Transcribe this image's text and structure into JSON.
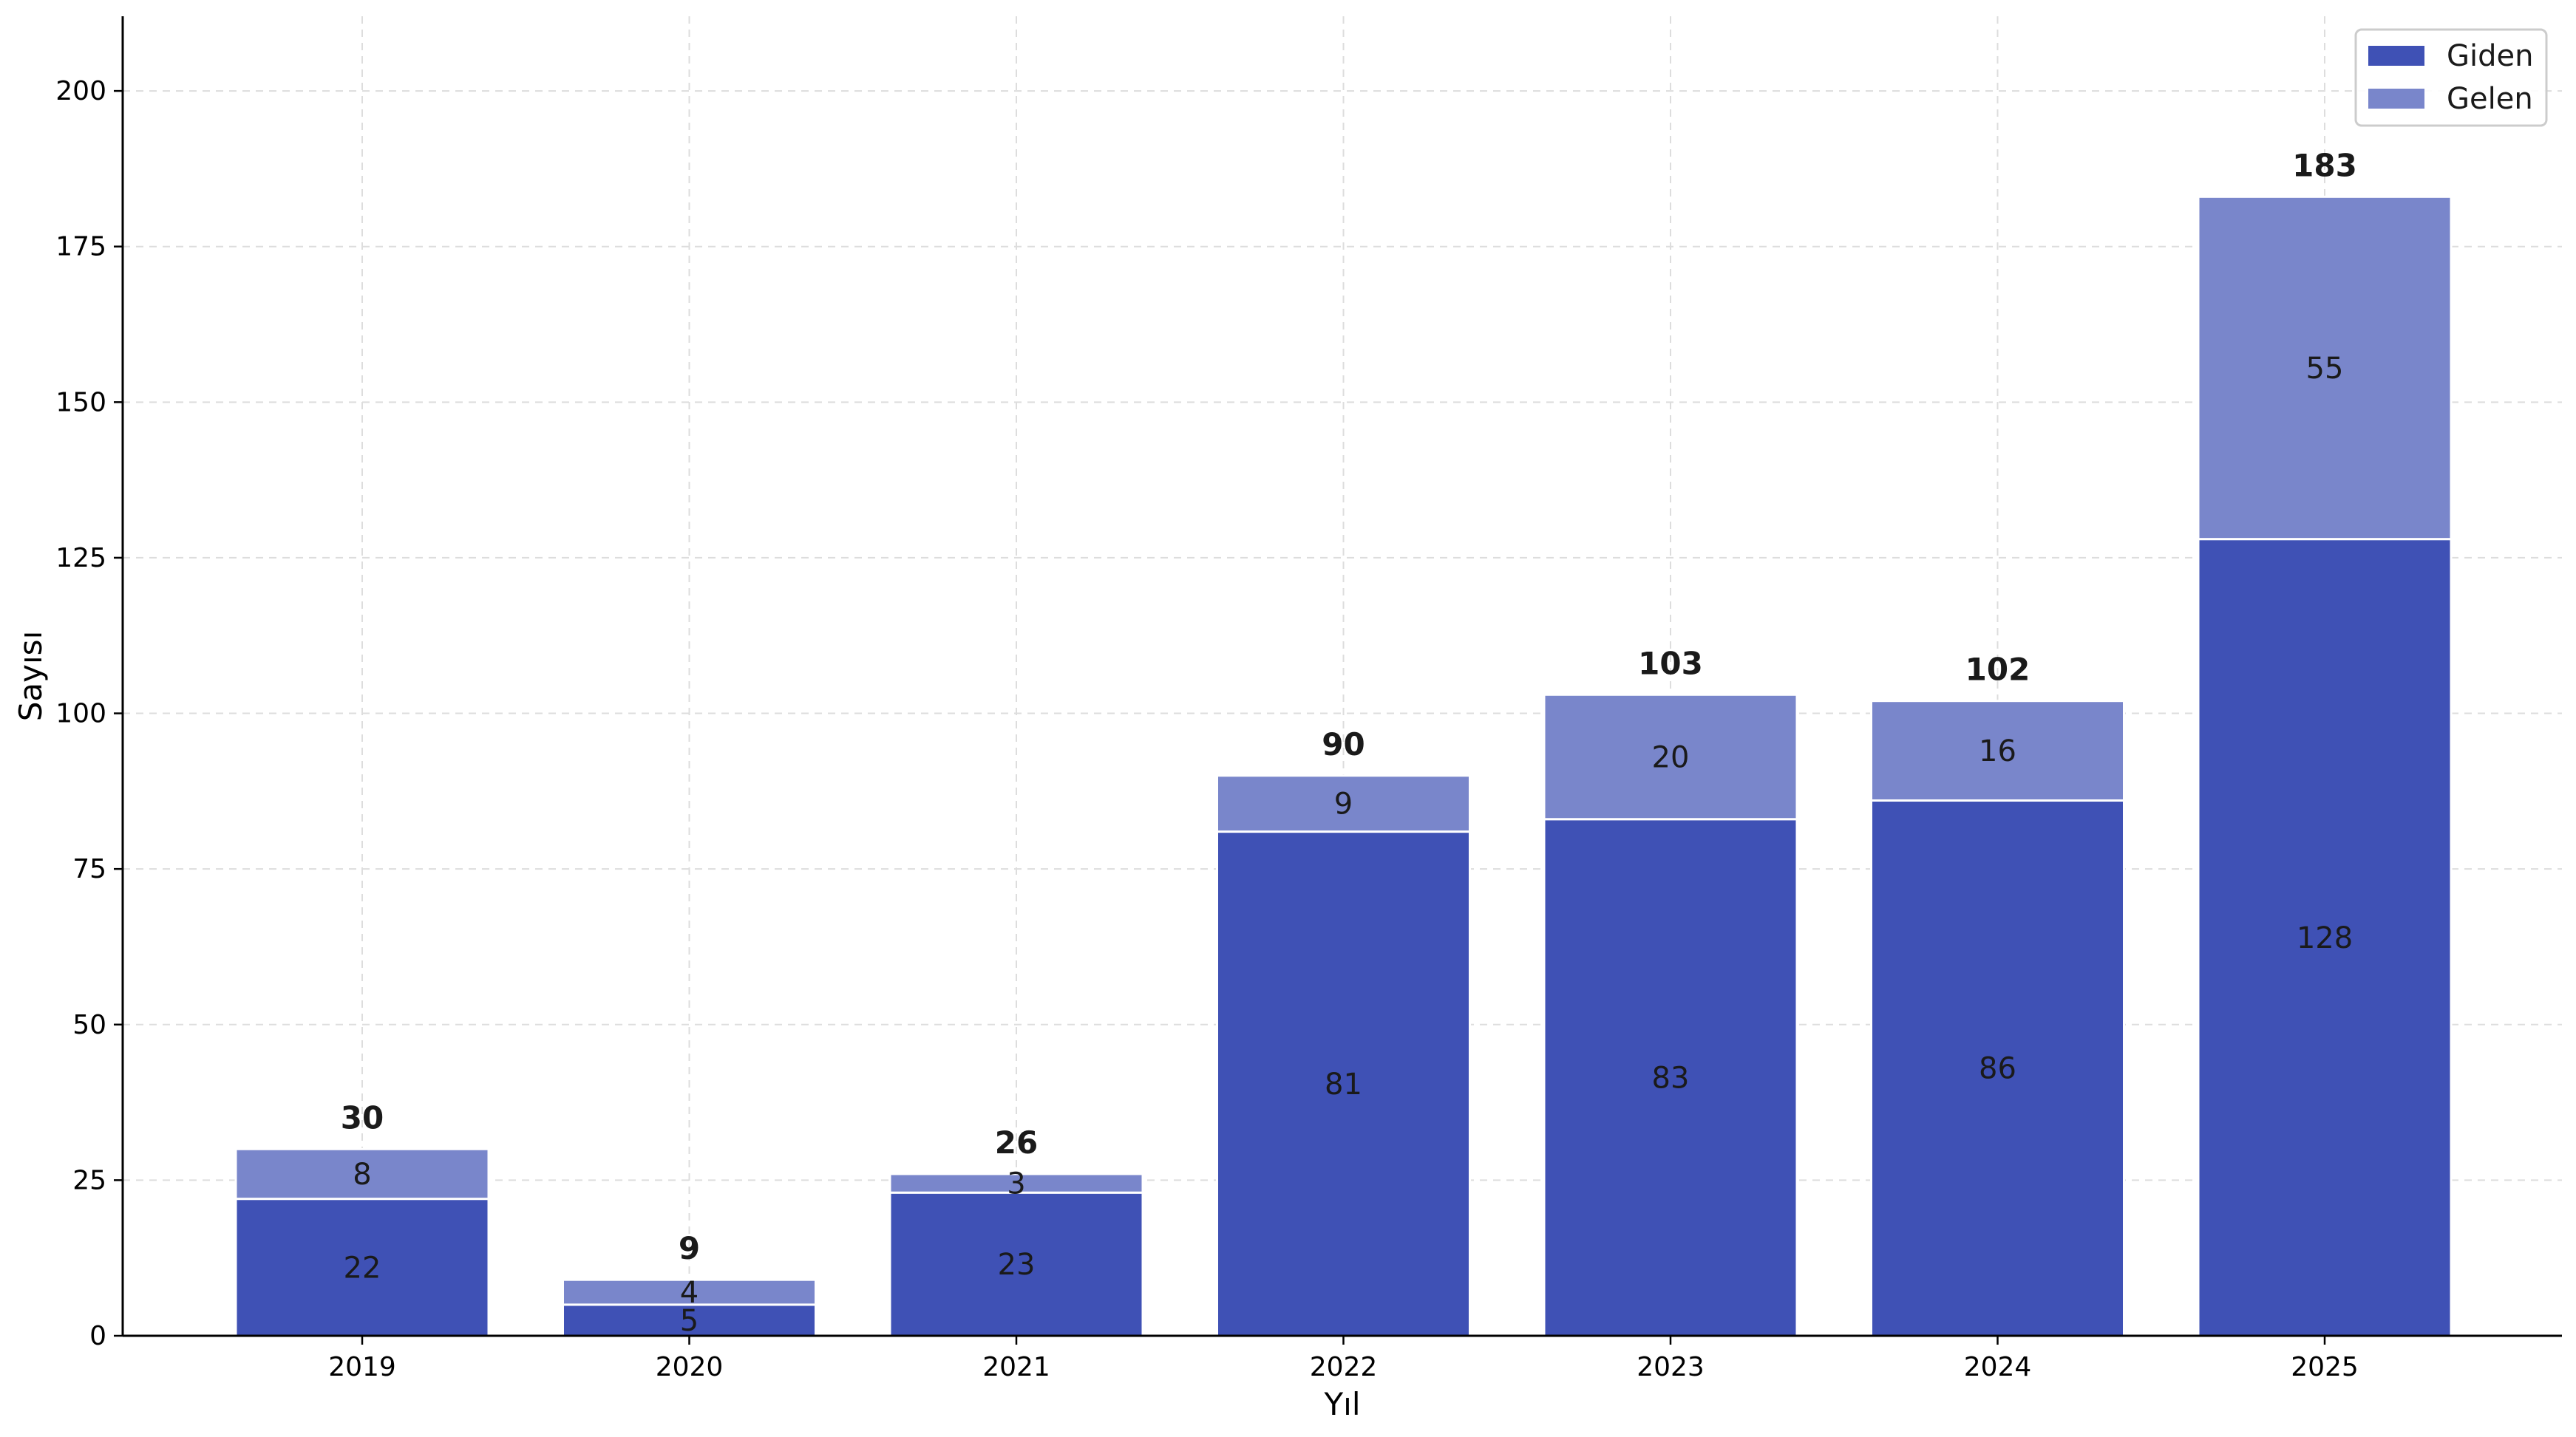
{
  "chart_data": {
    "type": "bar",
    "stacked": true,
    "categories": [
      "2019",
      "2020",
      "2021",
      "2022",
      "2023",
      "2024",
      "2025"
    ],
    "series": [
      {
        "name": "Giden",
        "color": "#3f51b5",
        "values": [
          22,
          5,
          23,
          81,
          83,
          86,
          128
        ]
      },
      {
        "name": "Gelen",
        "color": "#7986cb",
        "values": [
          8,
          4,
          3,
          9,
          20,
          16,
          55
        ]
      }
    ],
    "totals": [
      30,
      9,
      26,
      90,
      103,
      102,
      183
    ],
    "title": "",
    "xlabel": "Yıl",
    "ylabel": "Sayısı",
    "ylim": [
      0,
      212
    ],
    "yticks": [
      0,
      25,
      50,
      75,
      100,
      125,
      150,
      175,
      200
    ],
    "grid": true,
    "legend_position": "top-right"
  }
}
